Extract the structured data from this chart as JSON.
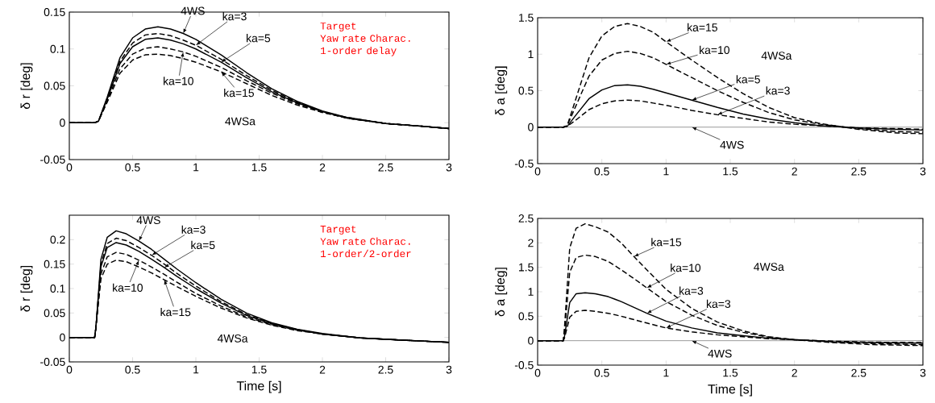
{
  "chart_data": [
    {
      "type": "line",
      "title": "Target",
      "subtitle": "Yaw rate Charac. 1-order delay",
      "ylabel": "δ r [deg]",
      "x": [
        0,
        0.2,
        0.23,
        0.3,
        0.4,
        0.5,
        0.6,
        0.7,
        0.8,
        0.9,
        1.0,
        1.2,
        1.4,
        1.6,
        1.8,
        2.0,
        2.2,
        2.5,
        2.8,
        3.0
      ],
      "xlim": [
        0,
        3
      ],
      "xticks": [
        0,
        0.5,
        1,
        1.5,
        2,
        2.5,
        3
      ],
      "ylim": [
        -0.05,
        0.15
      ],
      "yticks": [
        -0.05,
        0,
        0.05,
        0.1,
        0.15
      ],
      "series": [
        {
          "color": "#000000",
          "line_style": "solid",
          "values": [
            0,
            0,
            0.002,
            0.035,
            0.088,
            0.115,
            0.127,
            0.13,
            0.127,
            0.121,
            0.113,
            0.092,
            0.068,
            0.046,
            0.029,
            0.016,
            0.007,
            -0.001,
            -0.005,
            -0.008
          ]
        },
        {
          "color": "#000000",
          "line_style": "dashed",
          "values": [
            0,
            0,
            0.002,
            0.033,
            0.083,
            0.108,
            0.119,
            0.121,
            0.118,
            0.112,
            0.105,
            0.086,
            0.064,
            0.044,
            0.028,
            0.015,
            0.007,
            -0.001,
            -0.005,
            -0.008
          ]
        },
        {
          "color": "#000000",
          "line_style": "solid",
          "values": [
            0,
            0,
            0.002,
            0.032,
            0.08,
            0.103,
            0.113,
            0.115,
            0.112,
            0.107,
            0.1,
            0.082,
            0.061,
            0.042,
            0.027,
            0.015,
            0.006,
            -0.001,
            -0.005,
            -0.008
          ]
        },
        {
          "color": "#000000",
          "line_style": "dashed",
          "values": [
            0,
            0,
            0.002,
            0.03,
            0.073,
            0.093,
            0.101,
            0.103,
            0.1,
            0.096,
            0.09,
            0.075,
            0.057,
            0.04,
            0.026,
            0.014,
            0.006,
            -0.001,
            -0.005,
            -0.008
          ]
        },
        {
          "color": "#000000",
          "line_style": "dashed",
          "values": [
            0,
            0,
            0.002,
            0.028,
            0.067,
            0.085,
            0.092,
            0.093,
            0.091,
            0.087,
            0.082,
            0.069,
            0.053,
            0.037,
            0.024,
            0.014,
            0.006,
            -0.001,
            -0.005,
            -0.008
          ]
        }
      ],
      "annotations": [
        {
          "text": "4WS",
          "x": 0.9,
          "y": 0.121
        },
        {
          "text": "ka=3",
          "x": 1.0,
          "y": 0.105
        },
        {
          "text": "ka=5",
          "x": 1.2,
          "y": 0.082
        },
        {
          "text": "ka=10",
          "x": 0.9,
          "y": 0.096
        },
        {
          "text": "ka=15",
          "x": 1.2,
          "y": 0.069
        },
        "4WSa"
      ]
    },
    {
      "type": "line",
      "ylabel": "δ a [deg]",
      "x": [
        0,
        0.2,
        0.23,
        0.3,
        0.4,
        0.5,
        0.6,
        0.7,
        0.8,
        0.9,
        1.0,
        1.2,
        1.4,
        1.6,
        1.8,
        2.0,
        2.2,
        2.5,
        2.8,
        3.0
      ],
      "xlim": [
        0,
        3
      ],
      "xticks": [
        0,
        0.5,
        1,
        1.5,
        2,
        2.5,
        3
      ],
      "ylim": [
        -0.5,
        1.5
      ],
      "yticks": [
        -0.5,
        0,
        0.5,
        1,
        1.5
      ],
      "series": [
        {
          "color": "#808080",
          "line_style": "solid",
          "values": [
            0,
            0,
            0,
            0,
            0,
            0,
            0,
            0,
            0,
            0,
            0,
            0,
            0,
            0,
            0,
            0,
            0,
            0,
            0,
            0
          ]
        },
        {
          "color": "#000000",
          "line_style": "dashed",
          "values": [
            0,
            0,
            0.01,
            0.1,
            0.24,
            0.32,
            0.36,
            0.37,
            0.36,
            0.33,
            0.3,
            0.23,
            0.17,
            0.12,
            0.07,
            0.04,
            0.02,
            -0.01,
            -0.02,
            -0.03
          ]
        },
        {
          "color": "#000000",
          "line_style": "solid",
          "values": [
            0,
            0,
            0.01,
            0.17,
            0.39,
            0.51,
            0.57,
            0.58,
            0.56,
            0.52,
            0.47,
            0.37,
            0.27,
            0.18,
            0.11,
            0.06,
            0.02,
            -0.01,
            -0.03,
            -0.04
          ]
        },
        {
          "color": "#000000",
          "line_style": "dashed",
          "values": [
            0,
            0,
            0.02,
            0.3,
            0.7,
            0.92,
            1.01,
            1.04,
            1.01,
            0.95,
            0.86,
            0.68,
            0.5,
            0.34,
            0.2,
            0.1,
            0.04,
            -0.02,
            -0.06,
            -0.07
          ]
        },
        {
          "color": "#000000",
          "line_style": "dashed",
          "values": [
            0,
            0,
            0.02,
            0.4,
            0.95,
            1.25,
            1.38,
            1.42,
            1.38,
            1.3,
            1.17,
            0.92,
            0.68,
            0.46,
            0.27,
            0.13,
            0.05,
            -0.03,
            -0.08,
            -0.09
          ]
        }
      ],
      "annotations": [
        {
          "text": "ka=15",
          "x": 1.0,
          "y": 1.17
        },
        {
          "text": "ka=10",
          "x": 1.0,
          "y": 0.86
        },
        {
          "text": "4WSa"
        },
        {
          "text": "ka=5",
          "x": 1.2,
          "y": 0.37
        },
        {
          "text": "ka=3",
          "x": 1.4,
          "y": 0.17
        },
        {
          "text": "4WS",
          "x": 1.2,
          "y": 0.0
        }
      ]
    },
    {
      "type": "line",
      "ylabel": "δ r [deg]",
      "xlabel": "Time [s]",
      "title": "Target",
      "subtitle": "Yaw rate Charac. 1-order/2-order",
      "x": [
        0,
        0.2,
        0.21,
        0.25,
        0.3,
        0.37,
        0.45,
        0.55,
        0.65,
        0.75,
        0.85,
        1.0,
        1.2,
        1.4,
        1.6,
        1.8,
        2.0,
        2.3,
        2.6,
        3.0
      ],
      "xlim": [
        0,
        3
      ],
      "xticks": [
        0,
        0.5,
        1,
        1.5,
        2,
        2.5,
        3
      ],
      "ylim": [
        -0.05,
        0.25
      ],
      "yticks": [
        -0.05,
        0,
        0.05,
        0.1,
        0.15,
        0.2
      ],
      "series": [
        {
          "color": "#000000",
          "line_style": "solid",
          "values": [
            0,
            0,
            0.02,
            0.16,
            0.205,
            0.218,
            0.212,
            0.197,
            0.18,
            0.16,
            0.14,
            0.112,
            0.078,
            0.05,
            0.03,
            0.017,
            0.008,
            -0.001,
            -0.005,
            -0.01
          ]
        },
        {
          "color": "#000000",
          "line_style": "dashed",
          "values": [
            0,
            0,
            0.02,
            0.15,
            0.192,
            0.203,
            0.198,
            0.184,
            0.168,
            0.15,
            0.131,
            0.105,
            0.073,
            0.047,
            0.029,
            0.016,
            0.007,
            -0.001,
            -0.005,
            -0.01
          ]
        },
        {
          "color": "#000000",
          "line_style": "solid",
          "values": [
            0,
            0,
            0.02,
            0.145,
            0.184,
            0.194,
            0.189,
            0.176,
            0.16,
            0.143,
            0.125,
            0.1,
            0.07,
            0.045,
            0.028,
            0.016,
            0.007,
            -0.001,
            -0.005,
            -0.01
          ]
        },
        {
          "color": "#000000",
          "line_style": "dashed",
          "values": [
            0,
            0,
            0.02,
            0.13,
            0.165,
            0.174,
            0.17,
            0.158,
            0.144,
            0.129,
            0.113,
            0.09,
            0.064,
            0.042,
            0.026,
            0.015,
            0.007,
            -0.001,
            -0.005,
            -0.01
          ]
        },
        {
          "color": "#000000",
          "line_style": "dashed",
          "values": [
            0,
            0,
            0.02,
            0.12,
            0.15,
            0.158,
            0.155,
            0.144,
            0.132,
            0.118,
            0.104,
            0.084,
            0.06,
            0.04,
            0.025,
            0.014,
            0.007,
            -0.001,
            -0.005,
            -0.01
          ]
        }
      ],
      "annotations": [
        {
          "text": "4WS",
          "x": 0.55,
          "y": 0.197
        },
        {
          "text": "ka=3",
          "x": 0.65,
          "y": 0.168
        },
        {
          "text": "ka=5",
          "x": 0.75,
          "y": 0.143
        },
        {
          "text": "ka=10",
          "x": 0.55,
          "y": 0.158
        },
        {
          "text": "ka=15",
          "x": 0.75,
          "y": 0.118
        },
        "4WSa"
      ]
    },
    {
      "type": "line",
      "ylabel": "δ a [deg]",
      "xlabel": "Time [s]",
      "x": [
        0,
        0.2,
        0.21,
        0.25,
        0.3,
        0.37,
        0.45,
        0.55,
        0.65,
        0.75,
        0.85,
        1.0,
        1.2,
        1.4,
        1.6,
        1.8,
        2.0,
        2.3,
        2.6,
        3.0
      ],
      "xlim": [
        0,
        3
      ],
      "xticks": [
        0,
        0.5,
        1,
        1.5,
        2,
        2.5,
        3
      ],
      "ylim": [
        -0.5,
        2.5
      ],
      "yticks": [
        -0.5,
        0,
        0.5,
        1,
        1.5,
        2,
        2.5
      ],
      "series": [
        {
          "color": "#808080",
          "line_style": "solid",
          "values": [
            0,
            0,
            0,
            0,
            0,
            0,
            0,
            0,
            0,
            0,
            0,
            0,
            0,
            0,
            0,
            0,
            0,
            0,
            0,
            0
          ]
        },
        {
          "color": "#000000",
          "line_style": "dashed",
          "values": [
            0,
            0,
            0.06,
            0.48,
            0.6,
            0.62,
            0.6,
            0.56,
            0.5,
            0.43,
            0.36,
            0.26,
            0.18,
            0.12,
            0.08,
            0.04,
            0.02,
            -0.01,
            -0.03,
            -0.04
          ]
        },
        {
          "color": "#000000",
          "line_style": "solid",
          "values": [
            0,
            0,
            0.1,
            0.78,
            0.96,
            0.98,
            0.96,
            0.9,
            0.8,
            0.68,
            0.56,
            0.4,
            0.26,
            0.16,
            0.1,
            0.05,
            0.02,
            -0.02,
            -0.04,
            -0.05
          ]
        },
        {
          "color": "#000000",
          "line_style": "dashed",
          "values": [
            0,
            0,
            0.2,
            1.4,
            1.7,
            1.75,
            1.72,
            1.62,
            1.45,
            1.27,
            1.08,
            0.8,
            0.52,
            0.31,
            0.17,
            0.07,
            0.02,
            -0.03,
            -0.06,
            -0.08
          ]
        },
        {
          "color": "#000000",
          "line_style": "dashed",
          "values": [
            0,
            0,
            0.3,
            1.9,
            2.3,
            2.39,
            2.33,
            2.22,
            2.0,
            1.72,
            1.45,
            1.05,
            0.66,
            0.38,
            0.2,
            0.08,
            0.02,
            -0.04,
            -0.08,
            -0.1
          ]
        }
      ],
      "annotations": [
        {
          "text": "ka=15",
          "x": 0.75,
          "y": 1.72
        },
        {
          "text": "ka=10",
          "x": 0.85,
          "y": 1.08
        },
        {
          "text": "4WSa"
        },
        {
          "text": "ka=3",
          "x": 0.85,
          "y": 0.56
        },
        {
          "text": "ka=3",
          "x": 1.0,
          "y": 0.26
        },
        {
          "text": "4WS",
          "x": 1.2,
          "y": 0
        }
      ]
    }
  ]
}
